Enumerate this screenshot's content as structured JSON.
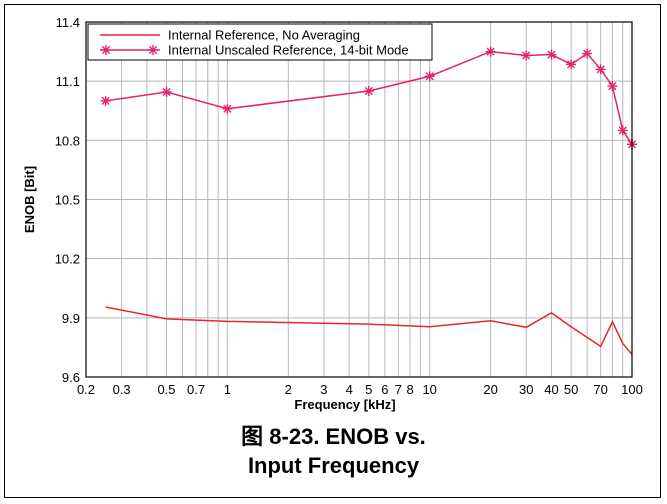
{
  "chart_data": {
    "type": "line",
    "xlabel": "Frequency [kHz]",
    "ylabel": "ENOB [Bit]",
    "xscale": "log",
    "xlim": [
      0.2,
      100
    ],
    "ylim": [
      9.6,
      11.4
    ],
    "xticks": [
      {
        "v": 0.2,
        "label": "0.2"
      },
      {
        "v": 0.3,
        "label": "0.3"
      },
      {
        "v": 0.5,
        "label": "0.5"
      },
      {
        "v": 0.7,
        "label": "0.7"
      },
      {
        "v": 1,
        "label": "1"
      },
      {
        "v": 2,
        "label": "2"
      },
      {
        "v": 3,
        "label": "3"
      },
      {
        "v": 4,
        "label": "4"
      },
      {
        "v": 5,
        "label": "5"
      },
      {
        "v": 6,
        "label": "6"
      },
      {
        "v": 7,
        "label": "7"
      },
      {
        "v": 8,
        "label": "8"
      },
      {
        "v": 10,
        "label": "10"
      },
      {
        "v": 20,
        "label": "20"
      },
      {
        "v": 30,
        "label": "30"
      },
      {
        "v": 40,
        "label": "40"
      },
      {
        "v": 50,
        "label": "50"
      },
      {
        "v": 70,
        "label": "70"
      },
      {
        "v": 100,
        "label": "100"
      }
    ],
    "minor_x": [
      0.4,
      0.6,
      0.8,
      0.9,
      9,
      60,
      80,
      90
    ],
    "yticks": [
      {
        "v": 9.6,
        "label": "9.6"
      },
      {
        "v": 9.9,
        "label": "9.9"
      },
      {
        "v": 10.2,
        "label": "10.2"
      },
      {
        "v": 10.5,
        "label": "10.5"
      },
      {
        "v": 10.8,
        "label": "10.8"
      },
      {
        "v": 11.1,
        "label": "11.1"
      },
      {
        "v": 11.4,
        "label": "11.4"
      }
    ],
    "grid": true,
    "legend_position": "top-left",
    "series": [
      {
        "name": "Internal Reference, No Averaging",
        "color": "#e8262e",
        "marker": "none",
        "x": [
          0.25,
          0.5,
          1,
          5,
          10,
          20,
          30,
          40,
          50,
          70,
          80,
          90,
          100
        ],
        "y": [
          9.955,
          9.895,
          9.882,
          9.868,
          9.855,
          9.885,
          9.852,
          9.925,
          9.855,
          9.755,
          9.88,
          9.77,
          9.715
        ]
      },
      {
        "name": "Internal Unscaled Reference, 14-bit Mode",
        "color": "#e0246e",
        "marker": "asterisk",
        "x": [
          0.25,
          0.5,
          1,
          5,
          10,
          20,
          30,
          40,
          50,
          60,
          70,
          80,
          90,
          100
        ],
        "y": [
          11.0,
          11.045,
          10.96,
          11.05,
          11.125,
          11.25,
          11.23,
          11.235,
          11.185,
          11.24,
          11.16,
          11.075,
          10.85,
          10.78
        ]
      }
    ]
  },
  "caption": {
    "line1": "图 8-23. ENOB vs.",
    "line2": "Input Frequency"
  }
}
